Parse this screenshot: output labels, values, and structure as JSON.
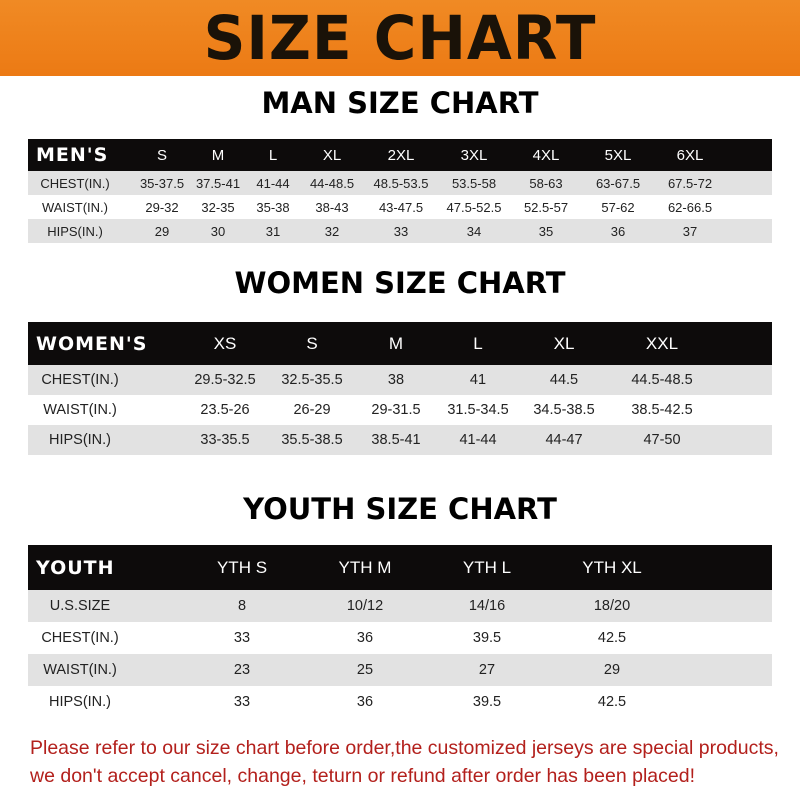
{
  "title": "SIZE CHART",
  "colors": {
    "banner": "#ef8220",
    "header_row": "#0d0b0b",
    "alt_row": "#e2e2e2",
    "note": "#b3201c"
  },
  "men": {
    "title": "MAN SIZE CHART",
    "header": [
      "MEN'S",
      "S",
      "M",
      "L",
      "XL",
      "2XL",
      "3XL",
      "4XL",
      "5XL",
      "6XL"
    ],
    "rows": [
      [
        "CHEST(IN.)",
        "35-37.5",
        "37.5-41",
        "41-44",
        "44-48.5",
        "48.5-53.5",
        "53.5-58",
        "58-63",
        "63-67.5",
        "67.5-72"
      ],
      [
        "WAIST(IN.)",
        "29-32",
        "32-35",
        "35-38",
        "38-43",
        "43-47.5",
        "47.5-52.5",
        "52.5-57",
        "57-62",
        "62-66.5"
      ],
      [
        "HIPS(IN.)",
        "29",
        "30",
        "31",
        "32",
        "33",
        "34",
        "35",
        "36",
        "37"
      ]
    ]
  },
  "women": {
    "title": "WOMEN SIZE CHART",
    "header": [
      "WOMEN'S",
      "XS",
      "S",
      "M",
      "L",
      "XL",
      "XXL"
    ],
    "rows": [
      [
        "CHEST(IN.)",
        "29.5-32.5",
        "32.5-35.5",
        "38",
        "41",
        "44.5",
        "44.5-48.5"
      ],
      [
        "WAIST(IN.)",
        "23.5-26",
        "26-29",
        "29-31.5",
        "31.5-34.5",
        "34.5-38.5",
        "38.5-42.5"
      ],
      [
        "HIPS(IN.)",
        "33-35.5",
        "35.5-38.5",
        "38.5-41",
        "41-44",
        "44-47",
        "47-50"
      ]
    ]
  },
  "youth": {
    "title": "YOUTH SIZE CHART",
    "header": [
      "YOUTH",
      "YTH S",
      "YTH M",
      "YTH L",
      "YTH XL"
    ],
    "rows": [
      [
        "U.S.SIZE",
        "8",
        "10/12",
        "14/16",
        "18/20"
      ],
      [
        "CHEST(IN.)",
        "33",
        "36",
        "39.5",
        "42.5"
      ],
      [
        "WAIST(IN.)",
        "23",
        "25",
        "27",
        "29"
      ],
      [
        "HIPS(IN.)",
        "33",
        "36",
        "39.5",
        "42.5"
      ]
    ]
  },
  "note": {
    "line1": "Please refer to our size chart before order,the customized jerseys are special products,",
    "line2": "we don't accept cancel, change, teturn or refund after order has been placed!"
  }
}
